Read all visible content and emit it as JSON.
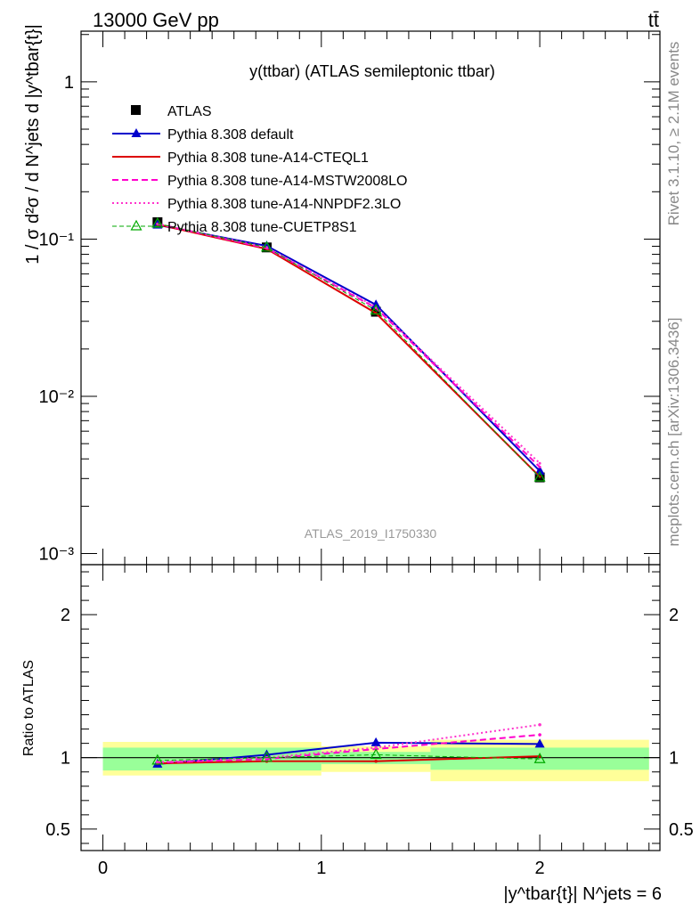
{
  "header": {
    "energy_label": "13000 GeV pp",
    "process_label": "tt̄"
  },
  "side_labels": {
    "rivet": "Rivet 3.1.10, ≥ 2.1M events",
    "source": "mcplots.cern.ch [arXiv:1306.3436]"
  },
  "colors": {
    "band_inner": "#99ff99",
    "band_outer": "#ffff99",
    "atlas": "#000000",
    "default": "#0000cc",
    "cteql1": "#dd0000",
    "mstw": "#ff00cc",
    "nnpdf": "#ff33cc",
    "cuetp8s1": "#00aa00"
  },
  "chart_data": [
    {
      "type": "line",
      "title": "y(ttbar) (ATLAS semileptonic ttbar)",
      "watermark": "ATLAS_2019_I1750330",
      "ylabel": "1 / σ d²σ / d N^jets d |y^tbar{t}|",
      "yscale": "log",
      "ylim": [
        0.00085,
        2.1
      ],
      "xlim": [
        -0.1,
        2.55
      ],
      "yticks": [
        {
          "value": 1,
          "label": "1"
        },
        {
          "value": 0.1,
          "label": "10⁻¹"
        },
        {
          "value": 0.01,
          "label": "10⁻²"
        },
        {
          "value": 0.001,
          "label": "10⁻³"
        }
      ],
      "legend_position": "top-left",
      "x": [
        0.25,
        0.75,
        1.25,
        2.0
      ],
      "series": [
        {
          "name": "ATLAS",
          "key": "atlas",
          "style": "marker",
          "values": [
            0.128,
            0.0885,
            0.0345,
            0.00305
          ]
        },
        {
          "name": "Pythia 8.308 default",
          "key": "default",
          "style": "solid",
          "values": [
            0.123,
            0.0905,
            0.0382,
            0.00335
          ]
        },
        {
          "name": "Pythia 8.308 tune-A14-CTEQL1",
          "key": "cteql1",
          "style": "solid",
          "values": [
            0.124,
            0.0865,
            0.0338,
            0.00308
          ]
        },
        {
          "name": "Pythia 8.308 tune-A14-MSTW2008LO",
          "key": "mstw",
          "style": "dashed",
          "values": [
            0.125,
            0.0875,
            0.0365,
            0.00355
          ]
        },
        {
          "name": "Pythia 8.308 tune-A14-NNPDF2.3LO",
          "key": "nnpdf",
          "style": "dotted",
          "values": [
            0.125,
            0.0885,
            0.037,
            0.00375
          ]
        },
        {
          "name": "Pythia 8.308 tune-CUETP8S1",
          "key": "cuetp8s1",
          "style": "dashed-thin",
          "values": [
            0.1255,
            0.0885,
            0.0352,
            0.00305
          ]
        }
      ]
    },
    {
      "type": "line",
      "ylabel": "Ratio to ATLAS",
      "xlabel": "|y^tbar{t}| N^jets = 6",
      "ylim": [
        0.35,
        2.35
      ],
      "xlim": [
        -0.1,
        2.55
      ],
      "yticks": [
        {
          "value": 0.5,
          "label": "0.5"
        },
        {
          "value": 1,
          "label": "1"
        },
        {
          "value": 2,
          "label": "2"
        }
      ],
      "xticks": [
        {
          "value": 0,
          "label": "0"
        },
        {
          "value": 1,
          "label": "1"
        },
        {
          "value": 2,
          "label": "2"
        }
      ],
      "bins": [
        [
          0,
          1.0
        ],
        [
          1.0,
          1.5
        ],
        [
          1.5,
          2.5
        ]
      ],
      "band_inner": [
        [
          0.91,
          1.07
        ],
        [
          0.955,
          1.04
        ],
        [
          0.915,
          1.07
        ]
      ],
      "band_outer": [
        [
          0.875,
          1.11
        ],
        [
          0.9,
          1.08
        ],
        [
          0.835,
          1.125
        ]
      ],
      "x": [
        0.25,
        0.75,
        1.25,
        2.0
      ],
      "series": [
        {
          "name": "Pythia 8.308 default",
          "key": "default",
          "style": "solid",
          "values": [
            0.955,
            1.02,
            1.105,
            1.095
          ]
        },
        {
          "name": "Pythia 8.308 tune-A14-CTEQL1",
          "key": "cteql1",
          "style": "solid",
          "values": [
            0.96,
            0.975,
            0.975,
            1.01
          ]
        },
        {
          "name": "Pythia 8.308 tune-A14-MSTW2008LO",
          "key": "mstw",
          "style": "dashed",
          "values": [
            0.965,
            0.99,
            1.06,
            1.16
          ]
        },
        {
          "name": "Pythia 8.308 tune-A14-NNPDF2.3LO",
          "key": "nnpdf",
          "style": "dotted",
          "values": [
            0.97,
            1.0,
            1.07,
            1.23
          ]
        },
        {
          "name": "Pythia 8.308 tune-CUETP8S1",
          "key": "cuetp8s1",
          "style": "dashed-thin",
          "values": [
            0.98,
            1.0,
            1.02,
            0.99
          ]
        }
      ]
    }
  ]
}
